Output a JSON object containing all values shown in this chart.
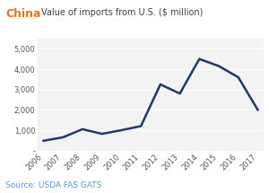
{
  "title_country": "China",
  "title_rest": "Value of imports from U.S. ($ million)",
  "country_color": "#E8761A",
  "title_color": "#404040",
  "source_text": "Source: USDA FAS GATS",
  "source_color": "#5B9BD5",
  "years": [
    2006,
    2007,
    2008,
    2009,
    2010,
    2011,
    2012,
    2013,
    2014,
    2015,
    2016,
    2017
  ],
  "values": [
    480,
    650,
    1050,
    820,
    1000,
    1200,
    3250,
    2800,
    4500,
    4150,
    3600,
    2000
  ],
  "line_color": "#1F3864",
  "line_width": 1.8,
  "ylim": [
    0,
    5500
  ],
  "yticks": [
    0,
    1000,
    2000,
    3000,
    4000,
    5000
  ],
  "ytick_labels": [
    "-",
    "1,000",
    "2,000",
    "3,000",
    "4,000",
    "5,000"
  ],
  "background_color": "#ffffff",
  "plot_bg_color": "#f2f2f2",
  "grid_color": "#ffffff",
  "figsize": [
    3.0,
    2.15
  ],
  "dpi": 100
}
